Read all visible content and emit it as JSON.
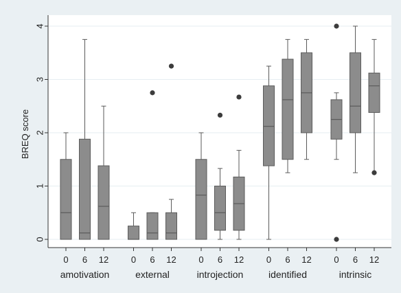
{
  "chart_data": {
    "type": "box",
    "ylabel": "BREQ score",
    "ylim": [
      0,
      4
    ],
    "yticks": [
      0,
      1,
      2,
      3,
      4
    ],
    "grid": true,
    "timepoints": [
      "0",
      "6",
      "12"
    ],
    "colors": {
      "background": "#eaf0f3",
      "plot_area": "#ffffff",
      "box_fill": "#8c8c8c",
      "box_stroke": "#5a5a5a",
      "grid": "#e6eef1",
      "outlier": "#3c3c3c"
    },
    "groups": [
      {
        "name": "amotivation",
        "boxes": [
          {
            "time": "0",
            "min": 0,
            "q1": 0,
            "median": 0.5,
            "q3": 1.5,
            "max": 2,
            "outliers": []
          },
          {
            "time": "6",
            "min": 0,
            "q1": 0,
            "median": 0.12,
            "q3": 1.88,
            "max": 3.75,
            "outliers": []
          },
          {
            "time": "12",
            "min": 0,
            "q1": 0,
            "median": 0.62,
            "q3": 1.38,
            "max": 2.5,
            "outliers": []
          }
        ]
      },
      {
        "name": "external",
        "boxes": [
          {
            "time": "0",
            "min": 0,
            "q1": 0,
            "median": 0,
            "q3": 0.25,
            "max": 0.5,
            "outliers": []
          },
          {
            "time": "6",
            "min": 0,
            "q1": 0,
            "median": 0.12,
            "q3": 0.5,
            "max": 0.5,
            "outliers": [
              2.75
            ]
          },
          {
            "time": "12",
            "min": 0,
            "q1": 0,
            "median": 0.12,
            "q3": 0.5,
            "max": 0.75,
            "outliers": [
              3.25
            ]
          }
        ]
      },
      {
        "name": "introjection",
        "boxes": [
          {
            "time": "0",
            "min": 0,
            "q1": 0,
            "median": 0.83,
            "q3": 1.5,
            "max": 2,
            "outliers": []
          },
          {
            "time": "6",
            "min": 0,
            "q1": 0.17,
            "median": 0.5,
            "q3": 1,
            "max": 1.33,
            "outliers": [
              2.33
            ]
          },
          {
            "time": "12",
            "min": 0,
            "q1": 0.17,
            "median": 0.67,
            "q3": 1.17,
            "max": 1.67,
            "outliers": [
              2.67
            ]
          }
        ]
      },
      {
        "name": "identified",
        "boxes": [
          {
            "time": "0",
            "min": 0,
            "q1": 1.38,
            "median": 2.12,
            "q3": 2.88,
            "max": 3.25,
            "outliers": []
          },
          {
            "time": "6",
            "min": 1.25,
            "q1": 1.5,
            "median": 2.62,
            "q3": 3.38,
            "max": 3.75,
            "outliers": []
          },
          {
            "time": "12",
            "min": 1.5,
            "q1": 2,
            "median": 2.75,
            "q3": 3.5,
            "max": 3.75,
            "outliers": []
          }
        ]
      },
      {
        "name": "intrinsic",
        "boxes": [
          {
            "time": "0",
            "min": 1.5,
            "q1": 1.88,
            "median": 2.25,
            "q3": 2.62,
            "max": 2.75,
            "outliers": [
              4,
              0
            ]
          },
          {
            "time": "6",
            "min": 1.25,
            "q1": 2,
            "median": 2.5,
            "q3": 3.5,
            "max": 4,
            "outliers": []
          },
          {
            "time": "12",
            "min": 1.25,
            "q1": 2.38,
            "median": 2.88,
            "q3": 3.12,
            "max": 3.75,
            "outliers": [
              1.25
            ]
          }
        ]
      }
    ]
  }
}
